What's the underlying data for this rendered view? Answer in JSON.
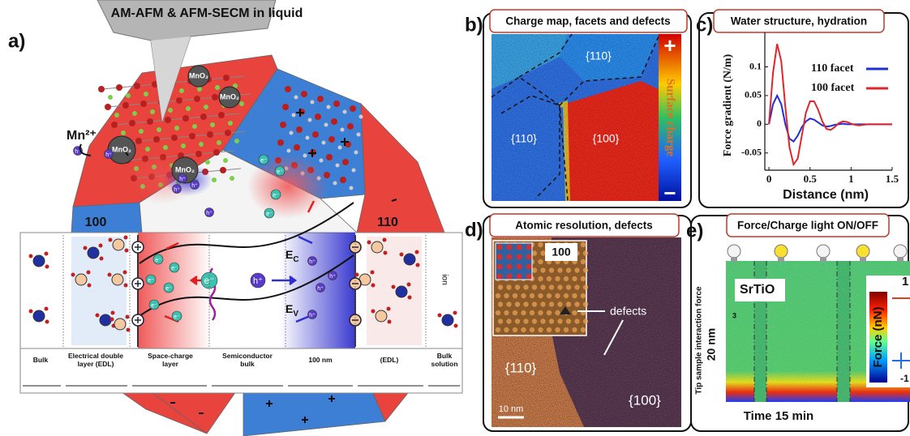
{
  "panel_a": {
    "label": "a)",
    "title": "AM-AFM & AFM-SECM in liquid",
    "mn_ion": "Mn²⁺",
    "mno2": "MnO₂",
    "facet_100": "100",
    "facet_110": "110",
    "electron": "e⁻",
    "hole": "h⁺",
    "ec": {
      "main": "E",
      "sub": "C"
    },
    "ev": {
      "main": "E",
      "sub": "V"
    },
    "ion": "ion",
    "regions": [
      [
        "Bulk"
      ],
      [
        "Electrical double",
        "layer (EDL)"
      ],
      [
        "Space-charge",
        "layer"
      ],
      [
        "Semiconductor",
        "bulk"
      ],
      [
        "100 nm"
      ],
      [
        "(EDL)"
      ],
      [
        "Bulk",
        "solution"
      ]
    ]
  },
  "panel_b": {
    "label": "b)",
    "title": "Charge map, facets and defects",
    "facets": [
      "{110}",
      "{110}",
      "{100}"
    ],
    "colorbar_label": "Surface charge",
    "colorbar_ends": [
      "+",
      "−"
    ]
  },
  "chart_data": {
    "type": "line",
    "panel_label": "c)",
    "title": "Water structure, hydration",
    "x_label": "Distance (nm)",
    "y_label": "Force gradient (N/m)",
    "x": [
      0,
      0.05,
      0.1,
      0.15,
      0.2,
      0.25,
      0.3,
      0.35,
      0.4,
      0.45,
      0.5,
      0.55,
      0.6,
      0.65,
      0.7,
      0.75,
      0.8,
      0.85,
      0.9,
      0.95,
      1.0,
      1.05,
      1.1,
      1.15,
      1.2,
      1.25,
      1.3,
      1.35,
      1.4,
      1.45,
      1.5
    ],
    "series": [
      {
        "name": "110 facet",
        "color": "#1f2fd6",
        "values": [
          0,
          0.035,
          0.05,
          0.035,
          0,
          -0.025,
          -0.03,
          -0.02,
          -0.005,
          0.005,
          0.01,
          0.008,
          0.003,
          -0.002,
          -0.004,
          -0.003,
          -0.001,
          0,
          0.001,
          0,
          0,
          0,
          0,
          0,
          0,
          0,
          0,
          0,
          0,
          0,
          0
        ]
      },
      {
        "name": "100 facet",
        "color": "#e0262b",
        "values": [
          0,
          0.09,
          0.14,
          0.11,
          0.03,
          -0.04,
          -0.07,
          -0.06,
          -0.02,
          0.02,
          0.04,
          0.04,
          0.025,
          0.005,
          -0.008,
          -0.01,
          -0.005,
          0.002,
          0.005,
          0.004,
          0.001,
          -0.001,
          -0.002,
          -0.001,
          0,
          0,
          0,
          0,
          0,
          0,
          0
        ]
      }
    ],
    "xlim": [
      -0.05,
      1.5
    ],
    "ylim": [
      -0.08,
      0.16
    ],
    "xticks": [
      0,
      0.5,
      1,
      1.5
    ],
    "yticks": [
      -0.05,
      0,
      0.05,
      0.1
    ],
    "legend": "upper right"
  },
  "panel_d": {
    "label": "d)",
    "title": "Atomic resolution, defects",
    "inset_label": "100",
    "defects": "defects",
    "facets": [
      "{110}",
      "{100}"
    ],
    "scale_bar": "10 nm"
  },
  "panel_e": {
    "label": "e)",
    "title": "Force/Charge light ON/OFF",
    "material": "SrTiO",
    "tick_3": "3",
    "y_label": "Tip sample interaction force",
    "y_scale": "20 nm",
    "x_label": "Time 15 min",
    "colorbar_label": "Force (nN)",
    "colorbar_ticks": [
      "1",
      "-1"
    ]
  }
}
